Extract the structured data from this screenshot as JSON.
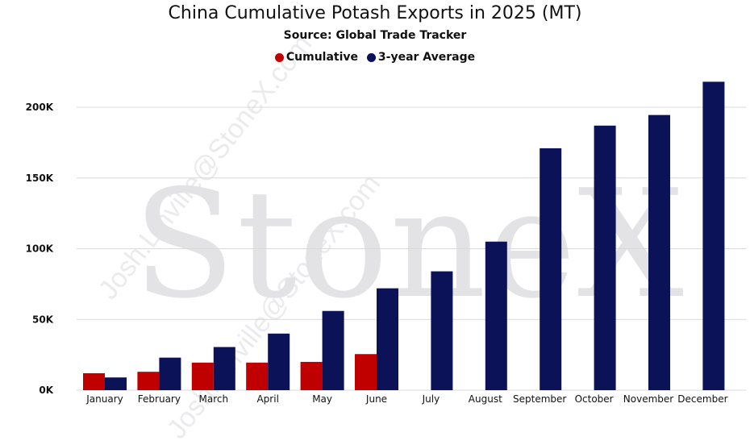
{
  "chart_data": {
    "type": "bar",
    "title": "China Cumulative Potash Exports in 2025 (MT)",
    "subtitle": "Source: Global Trade Tracker",
    "xlabel": "",
    "ylabel": "",
    "ylim": [
      0,
      200000
    ],
    "yticks": [
      0,
      50000,
      100000,
      150000,
      200000
    ],
    "ytick_labels": [
      "0K",
      "50K",
      "100K",
      "150K",
      "200K"
    ],
    "grid": true,
    "legend_position": "top-center",
    "categories": [
      "January",
      "February",
      "March",
      "April",
      "May",
      "June",
      "July",
      "August",
      "September",
      "October",
      "November",
      "December"
    ],
    "series": [
      {
        "name": "Cumulative",
        "color": "#c00000",
        "values": [
          12000,
          13000,
          19500,
          19500,
          20000,
          25500,
          null,
          null,
          null,
          null,
          null,
          null
        ]
      },
      {
        "name": "3-year Average",
        "color": "#0c1257",
        "values": [
          9000,
          23000,
          30500,
          40000,
          56000,
          72000,
          84000,
          105000,
          171000,
          187000,
          194500,
          218000
        ]
      }
    ]
  },
  "watermark": {
    "brand": "StoneX",
    "user": "Josh.Linville@StoneX.com"
  }
}
